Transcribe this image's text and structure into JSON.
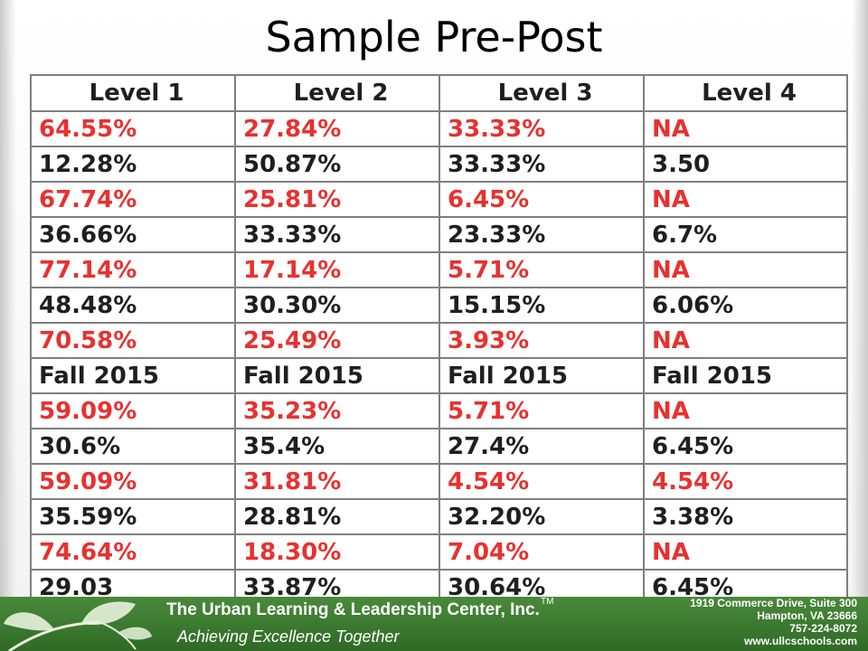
{
  "slide": {
    "title": "Sample Pre-Post"
  },
  "table": {
    "headers": [
      "Level 1",
      "Level 2",
      "Level 3",
      "Level 4"
    ],
    "rows": [
      {
        "color": "red",
        "cells": [
          "64.55%",
          "27.84%",
          "33.33%",
          "NA"
        ]
      },
      {
        "color": "black",
        "cells": [
          "12.28%",
          "50.87%",
          "33.33%",
          "3.50"
        ]
      },
      {
        "color": "red",
        "cells": [
          "67.74%",
          "25.81%",
          "6.45%",
          "NA"
        ]
      },
      {
        "color": "black",
        "cells": [
          "36.66%",
          "33.33%",
          "23.33%",
          "6.7%"
        ]
      },
      {
        "color": "red",
        "cells": [
          "77.14%",
          "17.14%",
          "5.71%",
          "NA"
        ]
      },
      {
        "color": "black",
        "cells": [
          "48.48%",
          "30.30%",
          "15.15%",
          "6.06%"
        ]
      },
      {
        "color": "red",
        "cells": [
          "70.58%",
          "25.49%",
          "3.93%",
          "NA"
        ]
      },
      {
        "color": "black",
        "cells": [
          "Fall 2015",
          "Fall 2015",
          "Fall 2015",
          "Fall 2015"
        ]
      },
      {
        "color": "red",
        "cells": [
          "59.09%",
          "35.23%",
          "5.71%",
          "NA"
        ]
      },
      {
        "color": "black",
        "cells": [
          "30.6%",
          "35.4%",
          "27.4%",
          "6.45%"
        ]
      },
      {
        "color": "red",
        "cells": [
          "59.09%",
          "31.81%",
          "4.54%",
          "4.54%"
        ]
      },
      {
        "color": "black",
        "cells": [
          "35.59%",
          "28.81%",
          "32.20%",
          "3.38%"
        ]
      },
      {
        "color": "red",
        "cells": [
          "74.64%",
          "18.30%",
          "7.04%",
          "NA"
        ]
      },
      {
        "color": "black",
        "cells": [
          "29.03",
          "33.87%",
          "30.64%",
          "6.45%"
        ]
      }
    ]
  },
  "footer": {
    "org_name": "The Urban Learning & Leadership Center, Inc.",
    "trademark": "TM",
    "tagline": "Achieving Excellence Together",
    "address_lines": [
      "1919 Commerce Drive, Suite 300",
      "Hampton, VA 23666",
      "757-224-8072",
      "www.ullcschools.com"
    ]
  },
  "colors": {
    "red_text": "#e8312f",
    "black_text": "#1f1f1f",
    "footer_green": "#3b7a30",
    "grid": "#7f7f7f"
  },
  "icons": [
    "leaf-sprout-icon"
  ]
}
